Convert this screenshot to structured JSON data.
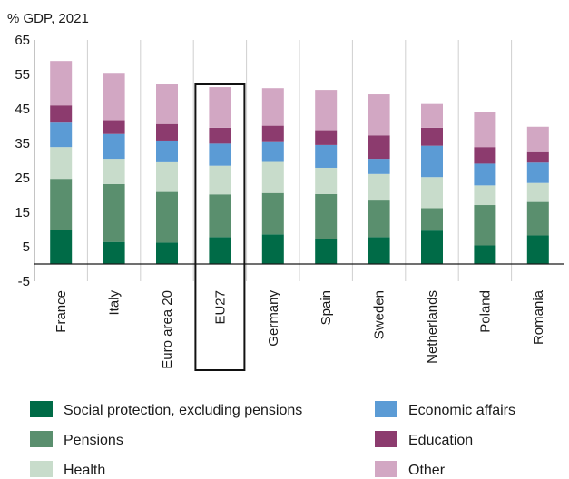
{
  "chart_data": {
    "type": "bar",
    "stacked": true,
    "unit_label": "% GDP, 2021",
    "ylim": [
      -5,
      65
    ],
    "yticks": [
      -5,
      5,
      15,
      25,
      35,
      45,
      55,
      65
    ],
    "grid": "vertical",
    "legend_position": "bottom",
    "highlighted_category": "EU27",
    "categories": [
      "France",
      "Italy",
      "Euro area 20",
      "EU27",
      "Germany",
      "Spain",
      "Sweden",
      "Netherlands",
      "Poland",
      "Romania"
    ],
    "series": [
      {
        "name": "Social protection, excluding pensions",
        "color": "#006b47",
        "values": [
          10.0,
          6.4,
          6.2,
          7.8,
          8.6,
          7.2,
          7.8,
          9.7,
          5.4,
          8.3
        ]
      },
      {
        "name": "Pensions",
        "color": "#5a8f6e",
        "values": [
          14.7,
          16.8,
          14.7,
          12.4,
          12.0,
          13.1,
          10.6,
          6.5,
          11.7,
          9.7
        ]
      },
      {
        "name": "Health",
        "color": "#c8dccb",
        "values": [
          9.2,
          7.3,
          8.6,
          8.3,
          9.0,
          7.6,
          7.7,
          9.0,
          5.7,
          5.5
        ]
      },
      {
        "name": "Economic affairs",
        "color": "#5b9bd5",
        "values": [
          7.1,
          7.2,
          6.3,
          6.4,
          6.0,
          6.6,
          4.4,
          9.1,
          6.3,
          5.9
        ]
      },
      {
        "name": "Education",
        "color": "#8c3b6e",
        "values": [
          5.0,
          4.0,
          4.8,
          4.6,
          4.5,
          4.3,
          6.8,
          5.2,
          4.8,
          3.3
        ]
      },
      {
        "name": "Other",
        "color": "#d2a7c3",
        "values": [
          12.9,
          13.5,
          11.5,
          11.8,
          10.9,
          11.7,
          11.9,
          6.9,
          10.1,
          7.1
        ]
      }
    ]
  }
}
